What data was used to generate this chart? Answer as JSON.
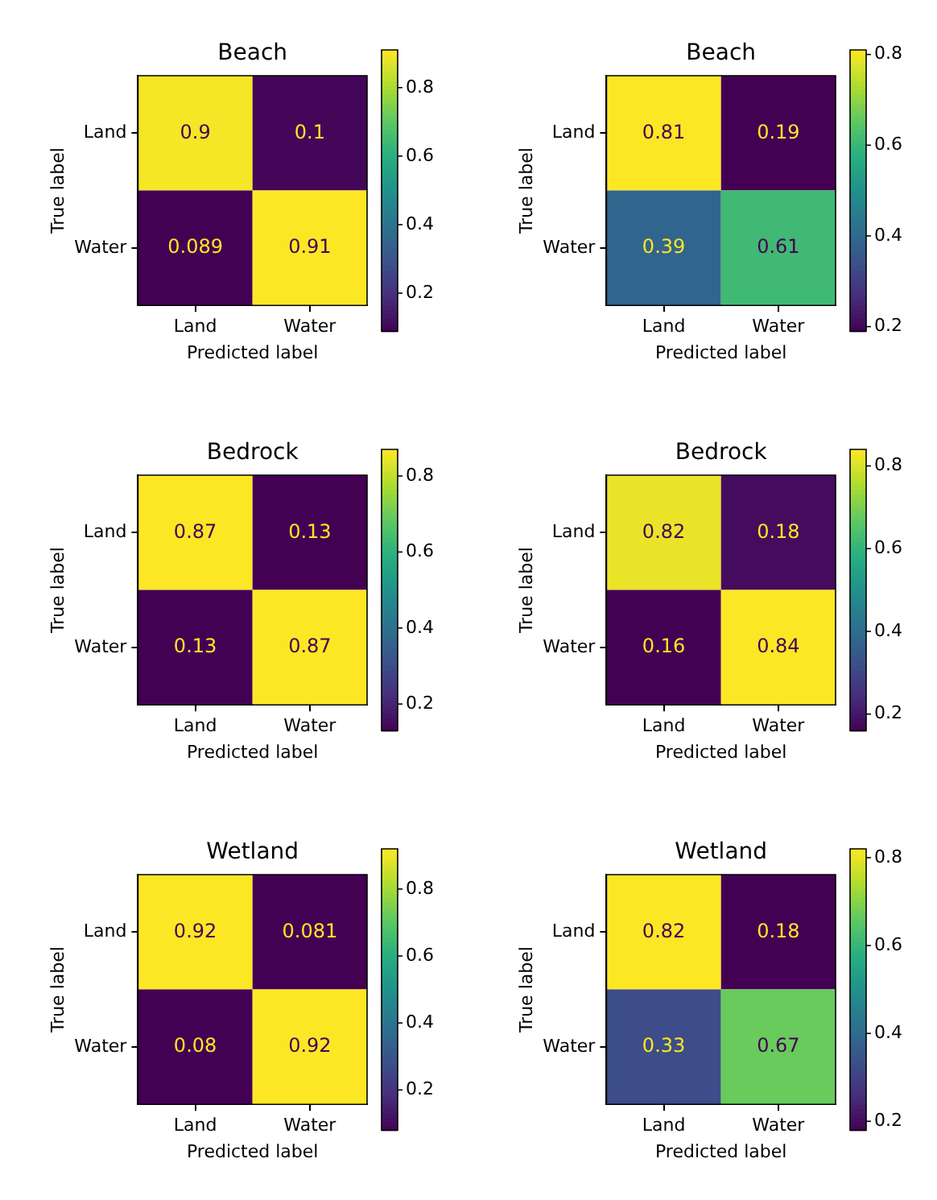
{
  "chart_data": [
    {
      "type": "heatmap",
      "title": "Beach",
      "xlabel": "Predicted label",
      "ylabel": "True label",
      "categories": [
        "Land",
        "Water"
      ],
      "y_categories": [
        "Land",
        "Water"
      ],
      "cells": [
        [
          0.9,
          0.1
        ],
        [
          0.089,
          0.91
        ]
      ],
      "clim": [
        0.089,
        0.91
      ],
      "cticks": [
        0.2,
        0.4,
        0.6,
        0.8
      ],
      "data_labels": true
    },
    {
      "type": "heatmap",
      "title": "Beach",
      "xlabel": "Predicted label",
      "ylabel": "True label",
      "categories": [
        "Land",
        "Water"
      ],
      "y_categories": [
        "Land",
        "Water"
      ],
      "cells": [
        [
          0.81,
          0.19
        ],
        [
          0.39,
          0.61
        ]
      ],
      "clim": [
        0.19,
        0.81
      ],
      "cticks": [
        0.2,
        0.4,
        0.6,
        0.8
      ],
      "data_labels": true
    },
    {
      "type": "heatmap",
      "title": "Bedrock",
      "xlabel": "Predicted label",
      "ylabel": "True label",
      "categories": [
        "Land",
        "Water"
      ],
      "y_categories": [
        "Land",
        "Water"
      ],
      "cells": [
        [
          0.87,
          0.13
        ],
        [
          0.13,
          0.87
        ]
      ],
      "clim": [
        0.13,
        0.87
      ],
      "cticks": [
        0.2,
        0.4,
        0.6,
        0.8
      ],
      "data_labels": true
    },
    {
      "type": "heatmap",
      "title": "Bedrock",
      "xlabel": "Predicted label",
      "ylabel": "True label",
      "categories": [
        "Land",
        "Water"
      ],
      "y_categories": [
        "Land",
        "Water"
      ],
      "cells": [
        [
          0.82,
          0.18
        ],
        [
          0.16,
          0.84
        ]
      ],
      "clim": [
        0.16,
        0.84
      ],
      "cticks": [
        0.2,
        0.4,
        0.6,
        0.8
      ],
      "data_labels": true
    },
    {
      "type": "heatmap",
      "title": "Wetland",
      "xlabel": "Predicted label",
      "ylabel": "True label",
      "categories": [
        "Land",
        "Water"
      ],
      "y_categories": [
        "Land",
        "Water"
      ],
      "cells": [
        [
          0.92,
          0.081
        ],
        [
          0.08,
          0.92
        ]
      ],
      "clim": [
        0.08,
        0.92
      ],
      "cticks": [
        0.2,
        0.4,
        0.6,
        0.8
      ],
      "data_labels": true
    },
    {
      "type": "heatmap",
      "title": "Wetland",
      "xlabel": "Predicted label",
      "ylabel": "True label",
      "categories": [
        "Land",
        "Water"
      ],
      "y_categories": [
        "Land",
        "Water"
      ],
      "cells": [
        [
          0.82,
          0.18
        ],
        [
          0.33,
          0.67
        ]
      ],
      "clim": [
        0.18,
        0.82
      ],
      "cticks": [
        0.2,
        0.4,
        0.6,
        0.8
      ],
      "data_labels": true
    }
  ]
}
